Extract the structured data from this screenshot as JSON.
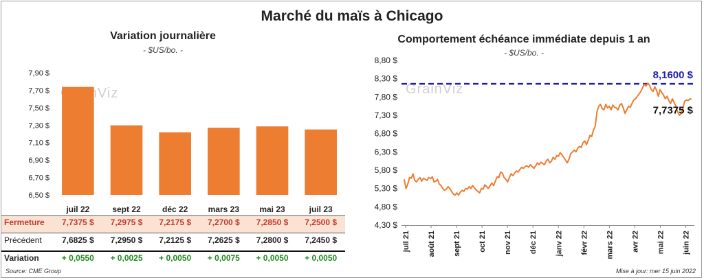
{
  "title": "Marché du maïs à Chicago",
  "left_panel": {
    "title": "Variation  journalière",
    "unit": "- $US/bo. -"
  },
  "right_panel": {
    "title": "Comportement  échéance  immédiate  depuis  1  an",
    "unit": "- $US/bo. -"
  },
  "watermark": "GrainViz",
  "colors": {
    "bar": "#ED7D31",
    "line": "#ED7D31",
    "ref_line": "#1f1fa8",
    "close_row_bg": "#FBE3D4",
    "variation_green": "#1e8a1e"
  },
  "table": {
    "rows": [
      {
        "label": "Fermeture",
        "values": [
          "7,7375  $",
          "7,2975  $",
          "7,2175  $",
          "7,2700  $",
          "7,2850  $",
          "7,2500  $"
        ]
      },
      {
        "label": "Précédent",
        "values": [
          "7,6825  $",
          "7,2950  $",
          "7,2125  $",
          "7,2625  $",
          "7,2800  $",
          "7,2450  $"
        ]
      },
      {
        "label": "Variation",
        "values": [
          "+ 0,0550",
          "+ 0,0025",
          "+ 0,0050",
          "+ 0,0075",
          "+ 0,0050",
          "+ 0,0050"
        ]
      }
    ]
  },
  "footer": {
    "source": "Source: CME Group",
    "updated": "Mise à jour: mer 15 juin 2022"
  },
  "chart_data": [
    {
      "type": "bar",
      "title": "Variation  journalière",
      "ylabel": "- $US/bo. -",
      "categories": [
        "juil 22",
        "sept 22",
        "déc 22",
        "mars 23",
        "mai 23",
        "juil 23"
      ],
      "values": [
        7.7375,
        7.2975,
        7.2175,
        7.27,
        7.285,
        7.25
      ],
      "ylim": [
        6.5,
        7.9
      ],
      "yticks": [
        6.5,
        6.7,
        6.9,
        7.1,
        7.3,
        7.5,
        7.7,
        7.9
      ],
      "ytick_labels": [
        "6,50 $",
        "6,70 $",
        "6,90 $",
        "7,10 $",
        "7,30 $",
        "7,50 $",
        "7,70 $",
        "7,90 $"
      ],
      "grid": false
    },
    {
      "type": "line",
      "title": "Comportement  échéance  immédiate  depuis  1  an",
      "ylabel": "- $US/bo. -",
      "x_start": "juil 21",
      "x_end": "juin 22",
      "xtick_labels": [
        "juil 21",
        "août 21",
        "sept 21",
        "oct 21",
        "nov 21",
        "déc 21",
        "janv 22",
        "févr 22",
        "mars 22",
        "avr 22",
        "mai 22",
        "juin 22"
      ],
      "ylim": [
        4.3,
        8.8
      ],
      "yticks": [
        4.3,
        4.8,
        5.3,
        5.8,
        6.3,
        6.8,
        7.3,
        7.8,
        8.3,
        8.8
      ],
      "ytick_labels": [
        "4,30 $",
        "4,80 $",
        "5,30 $",
        "5,80 $",
        "6,30 $",
        "6,80 $",
        "7,30 $",
        "7,80 $",
        "8,30 $",
        "8,80 $"
      ],
      "reference_line": {
        "value": 8.16,
        "label": "8,1600 $"
      },
      "last_value_label": "7,7375 $",
      "series": [
        {
          "values": [
            5.55,
            5.3,
            5.42,
            5.6,
            5.58,
            5.7,
            5.52,
            5.48,
            5.55,
            5.6,
            5.5,
            5.58,
            5.55,
            5.52,
            5.6,
            5.57,
            5.62,
            5.48,
            5.5,
            5.55,
            5.42,
            5.38,
            5.3,
            5.25,
            5.28,
            5.35,
            5.3,
            5.22,
            5.15,
            5.12,
            5.18,
            5.12,
            5.2,
            5.25,
            5.22,
            5.3,
            5.28,
            5.35,
            5.3,
            5.38,
            5.32,
            5.26,
            5.22,
            5.18,
            5.3,
            5.28,
            5.4,
            5.35,
            5.3,
            5.38,
            5.45,
            5.38,
            5.5,
            5.62,
            5.6,
            5.75,
            5.72,
            5.6,
            5.55,
            5.48,
            5.6,
            5.7,
            5.65,
            5.72,
            5.78,
            5.75,
            5.82,
            5.88,
            5.85,
            5.9,
            5.92,
            5.88,
            5.95,
            5.9,
            5.85,
            5.92,
            6.0,
            5.95,
            6.02,
            5.98,
            5.95,
            6.05,
            6.1,
            6.0,
            6.05,
            6.15,
            6.1,
            6.2,
            6.18,
            6.28,
            6.22,
            6.15,
            6.08,
            6.0,
            6.1,
            6.25,
            6.3,
            6.35,
            6.3,
            6.4,
            6.45,
            6.42,
            6.55,
            6.6,
            6.5,
            6.62,
            6.75,
            6.72,
            6.9,
            7.0,
            7.4,
            7.55,
            7.6,
            7.48,
            7.45,
            7.6,
            7.5,
            7.55,
            7.45,
            7.58,
            7.52,
            7.5,
            7.45,
            7.58,
            7.62,
            7.5,
            7.35,
            7.45,
            7.55,
            7.52,
            7.62,
            7.72,
            7.75,
            7.82,
            7.88,
            7.95,
            8.05,
            8.15,
            8.1,
            8.18,
            8.12,
            8.0,
            7.95,
            8.08,
            7.98,
            7.82,
            8.0,
            7.92,
            7.85,
            7.75,
            7.82,
            7.7,
            7.62,
            7.75,
            7.65,
            7.55,
            7.4,
            7.3,
            7.35,
            7.5,
            7.68,
            7.72,
            7.7,
            7.75,
            7.7375
          ]
        }
      ],
      "grid": false
    }
  ]
}
